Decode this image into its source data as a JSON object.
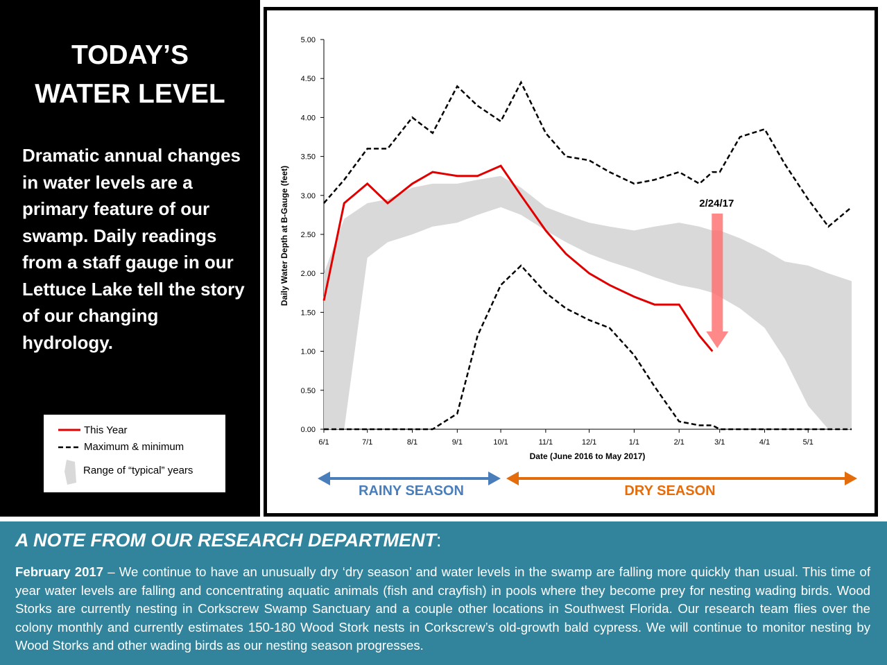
{
  "panel": {
    "title": [
      "TODAY’S",
      "WATER LEVEL"
    ],
    "body": "Dramatic annual changes in water levels are a primary feature of our swamp. Daily readings from a staff gauge in our Lettuce Lake tell the story of our changing hydrology."
  },
  "chart_data": {
    "type": "line",
    "xlabel": "Date (June 2016 to May 2017)",
    "ylabel": "Daily Water Depth at B-Gauge (feet)",
    "x": [
      "6/1",
      "6/15",
      "7/1",
      "7/15",
      "8/1",
      "8/15",
      "9/1",
      "9/15",
      "10/1",
      "10/15",
      "11/1",
      "11/15",
      "12/1",
      "12/15",
      "1/1",
      "1/15",
      "2/1",
      "2/15",
      "2/24",
      "3/1",
      "3/15",
      "4/1",
      "4/15",
      "5/1",
      "5/15",
      "5/31"
    ],
    "xlim": [
      "6/1",
      "5/31"
    ],
    "xticks": [
      "6/1",
      "7/1",
      "8/1",
      "9/1",
      "10/1",
      "11/1",
      "12/1",
      "1/1",
      "2/1",
      "3/1",
      "4/1",
      "5/1"
    ],
    "ylim": [
      0,
      5
    ],
    "yticks": [
      {
        "value": 0,
        "label": "0.00"
      },
      {
        "value": 0.5,
        "label": "0.50"
      },
      {
        "value": 1,
        "label": "1.00"
      },
      {
        "value": 1.5,
        "label": "1.50"
      },
      {
        "value": 2,
        "label": "2.00"
      },
      {
        "value": 2.5,
        "label": "2.50"
      },
      {
        "value": 3,
        "label": "3.00"
      },
      {
        "value": 3.5,
        "label": "3.50"
      },
      {
        "value": 4,
        "label": "4.00"
      },
      {
        "value": 4.5,
        "label": "4.50"
      },
      {
        "value": 5,
        "label": "5.00"
      }
    ],
    "series": [
      {
        "name": "This Year",
        "color": "#e00000",
        "values": [
          1.65,
          2.9,
          3.15,
          2.9,
          3.15,
          3.3,
          3.25,
          3.25,
          3.38,
          3.0,
          2.55,
          2.25,
          2.0,
          1.85,
          1.7,
          1.6,
          1.6,
          1.2,
          1.0,
          null,
          null,
          null,
          null,
          null,
          null,
          null
        ]
      },
      {
        "name": "Maximum & minimum",
        "color": "#000000",
        "high": [
          2.9,
          3.2,
          3.6,
          3.6,
          4.0,
          3.8,
          4.4,
          4.15,
          3.95,
          4.45,
          3.8,
          3.5,
          3.45,
          3.3,
          3.15,
          3.2,
          3.3,
          3.15,
          3.3,
          3.3,
          3.75,
          3.85,
          3.4,
          2.95,
          2.6,
          2.85
        ],
        "low": [
          0,
          0,
          0,
          0,
          0,
          0,
          0.2,
          1.2,
          1.85,
          2.1,
          1.75,
          1.55,
          1.4,
          1.3,
          0.95,
          0.55,
          0.1,
          0.05,
          0.05,
          0,
          0,
          0,
          0,
          0,
          0,
          0
        ]
      },
      {
        "name": "Range of “typical” years",
        "color": "#d9d9d9",
        "high": [
          2.0,
          2.7,
          2.9,
          2.95,
          3.1,
          3.15,
          3.15,
          3.2,
          3.25,
          3.1,
          2.85,
          2.75,
          2.65,
          2.6,
          2.55,
          2.6,
          2.65,
          2.6,
          2.55,
          2.55,
          2.45,
          2.3,
          2.15,
          2.1,
          2.0,
          1.9
        ],
        "low": [
          0,
          0,
          2.2,
          2.4,
          2.5,
          2.6,
          2.65,
          2.75,
          2.85,
          2.75,
          2.55,
          2.4,
          2.25,
          2.15,
          2.05,
          1.95,
          1.85,
          1.8,
          1.75,
          1.7,
          1.55,
          1.3,
          0.9,
          0.3,
          0,
          0
        ]
      }
    ],
    "annotation": {
      "text": "2/24/17",
      "x": "2/24"
    },
    "seasons": [
      "RAINY SEASON",
      "DRY SEASON"
    ]
  },
  "note": {
    "heading": "A NOTE FROM OUR RESEARCH DEPARTMENT",
    "heading_suffix": ":",
    "lead": "February 2017",
    "body": " – We continue to have an unusually dry ‘dry season’ and water levels in the swamp are falling more quickly than usual. This time of year water levels are falling and concentrating aquatic animals (fish and crayfish) in pools where they become prey for nesting wading birds. Wood Storks are currently nesting in Corkscrew Swamp Sanctuary and a couple other locations in Southwest Florida. Our research team flies over the colony monthly and currently estimates 150-180 Wood Stork nests in Corkscrew’s old-growth bald cypress. We will continue to monitor nesting by Wood Storks and other wading birds as our nesting season progresses."
  }
}
